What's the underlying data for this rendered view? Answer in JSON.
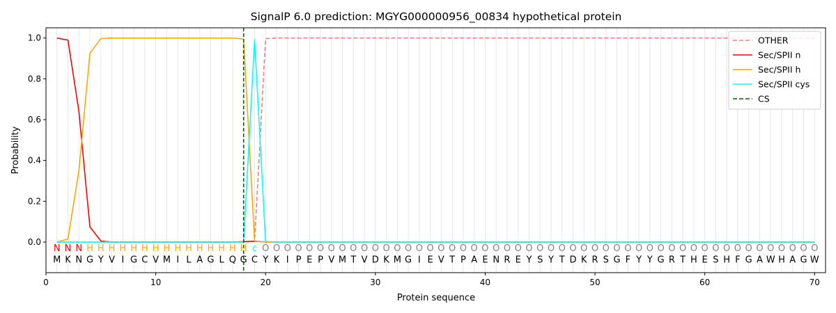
{
  "chart_data": {
    "type": "line",
    "title": "SignalP 6.0 prediction: MGYG000000956_00834 hypothetical protein",
    "xlabel": "Protein sequence",
    "ylabel": "Probability",
    "xlim": [
      0,
      71
    ],
    "ylim": [
      -0.15,
      1.05
    ],
    "x_ticks": [
      0,
      10,
      20,
      30,
      40,
      50,
      60,
      70
    ],
    "y_ticks": [
      0.0,
      0.2,
      0.4,
      0.6,
      0.8,
      1.0
    ],
    "legend_position": "top-right",
    "sequence": [
      "M",
      "K",
      "N",
      "G",
      "Y",
      "V",
      "I",
      "G",
      "C",
      "V",
      "M",
      "I",
      "L",
      "A",
      "G",
      "L",
      "Q",
      "G",
      "C",
      "Y",
      "K",
      "I",
      "P",
      "E",
      "P",
      "V",
      "M",
      "T",
      "V",
      "D",
      "K",
      "M",
      "G",
      "I",
      "E",
      "V",
      "T",
      "P",
      "A",
      "E",
      "N",
      "R",
      "E",
      "Y",
      "S",
      "Y",
      "T",
      "D",
      "K",
      "R",
      "S",
      "G",
      "F",
      "Y",
      "Y",
      "G",
      "R",
      "T",
      "H",
      "E",
      "S",
      "H",
      "F",
      "G",
      "A",
      "W",
      "H",
      "A",
      "G",
      "W"
    ],
    "regions": [
      "N",
      "N",
      "N",
      "H",
      "H",
      "H",
      "H",
      "H",
      "H",
      "H",
      "H",
      "H",
      "H",
      "H",
      "H",
      "H",
      "H",
      "H",
      "c",
      "O",
      "O",
      "O",
      "O",
      "O",
      "O",
      "O",
      "O",
      "O",
      "O",
      "O",
      "O",
      "O",
      "O",
      "O",
      "O",
      "O",
      "O",
      "O",
      "O",
      "O",
      "O",
      "O",
      "O",
      "O",
      "O",
      "O",
      "O",
      "O",
      "O",
      "O",
      "O",
      "O",
      "O",
      "O",
      "O",
      "O",
      "O",
      "O",
      "O",
      "O",
      "O",
      "O",
      "O",
      "O",
      "O",
      "O",
      "O",
      "O",
      "O",
      "O"
    ],
    "region_colors": {
      "N": "#ff0000",
      "H": "#ffa500",
      "c": "#00ffff",
      "O": "#808080"
    },
    "cleavage_site": 18,
    "series": [
      {
        "name": "OTHER",
        "color": "#f08080",
        "dash": true,
        "values": [
          0,
          0,
          0,
          0,
          0,
          0,
          0,
          0,
          0,
          0,
          0,
          0,
          0,
          0,
          0,
          0,
          0,
          0,
          0.003,
          0.997,
          1,
          1,
          1,
          1,
          1,
          1,
          1,
          1,
          1,
          1,
          1,
          1,
          1,
          1,
          1,
          1,
          1,
          1,
          1,
          1,
          1,
          1,
          1,
          1,
          1,
          1,
          1,
          1,
          1,
          1,
          1,
          1,
          1,
          1,
          1,
          1,
          1,
          1,
          1,
          1,
          1,
          1,
          1,
          1,
          1,
          1,
          1,
          1,
          1,
          1
        ]
      },
      {
        "name": "Sec/SPII n",
        "color": "#ff0000",
        "dash": false,
        "values": [
          1.0,
          0.99,
          0.64,
          0.075,
          0.005,
          0,
          0,
          0,
          0,
          0,
          0,
          0,
          0,
          0,
          0,
          0,
          0,
          0.002,
          0.004,
          0,
          0,
          0,
          0,
          0,
          0,
          0,
          0,
          0,
          0,
          0,
          0,
          0,
          0,
          0,
          0,
          0,
          0,
          0,
          0,
          0,
          0,
          0,
          0,
          0,
          0,
          0,
          0,
          0,
          0,
          0,
          0,
          0,
          0,
          0,
          0,
          0,
          0,
          0,
          0,
          0,
          0,
          0,
          0,
          0,
          0,
          0,
          0,
          0,
          0,
          0
        ]
      },
      {
        "name": "Sec/SPII h",
        "color": "#ffa500",
        "dash": false,
        "values": [
          0,
          0.015,
          0.35,
          0.925,
          0.997,
          1,
          1,
          1,
          1,
          1,
          1,
          1,
          1,
          1,
          1,
          1,
          1,
          0.995,
          0.003,
          0,
          0,
          0,
          0,
          0,
          0,
          0,
          0,
          0,
          0,
          0,
          0,
          0,
          0,
          0,
          0,
          0,
          0,
          0,
          0,
          0,
          0,
          0,
          0,
          0,
          0,
          0,
          0,
          0,
          0,
          0,
          0,
          0,
          0,
          0,
          0,
          0,
          0,
          0,
          0,
          0,
          0,
          0,
          0,
          0,
          0,
          0,
          0,
          0,
          0,
          0
        ]
      },
      {
        "name": "Sec/SPII cys",
        "color": "#00ffff",
        "dash": false,
        "values": [
          0,
          0,
          0,
          0,
          0,
          0,
          0,
          0,
          0,
          0,
          0,
          0,
          0,
          0,
          0,
          0,
          0,
          0,
          0.993,
          0.003,
          0,
          0,
          0,
          0,
          0,
          0,
          0,
          0,
          0,
          0,
          0,
          0,
          0,
          0,
          0,
          0,
          0,
          0,
          0,
          0,
          0,
          0,
          0,
          0,
          0,
          0,
          0,
          0,
          0,
          0,
          0,
          0,
          0,
          0,
          0,
          0,
          0,
          0,
          0,
          0,
          0,
          0,
          0,
          0,
          0,
          0,
          0,
          0,
          0,
          0
        ]
      },
      {
        "name": "CS",
        "color": "#006400",
        "dash": true,
        "values": []
      }
    ]
  }
}
